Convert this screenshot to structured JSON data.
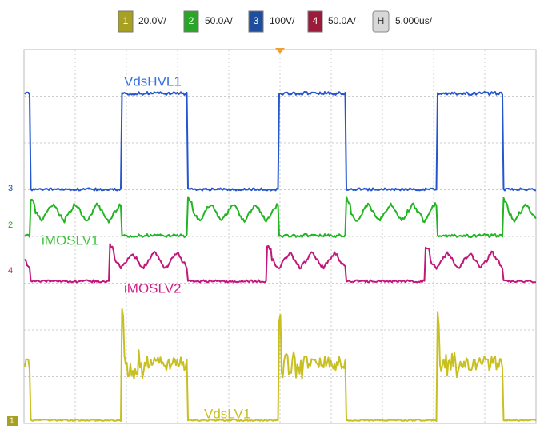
{
  "channels": [
    {
      "number": "1",
      "scale": "20.0V/"
    },
    {
      "number": "2",
      "scale": "50.0A/"
    },
    {
      "number": "3",
      "scale": "100V/"
    },
    {
      "number": "4",
      "scale": "50.0A/"
    }
  ],
  "timebase": {
    "label": "H",
    "scale": "5.000us/"
  },
  "traces": {
    "vds_hv": "VdsHVL1",
    "i_lv1": "iMOSLV1",
    "i_lv2": "iMOSLV2",
    "vds_lv": "VdsLV1"
  }
}
